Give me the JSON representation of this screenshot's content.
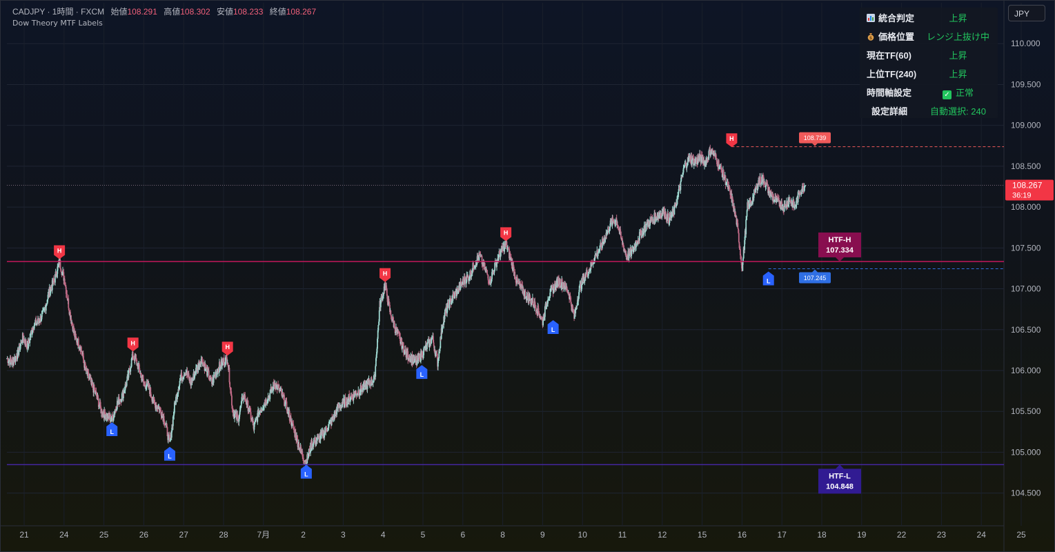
{
  "header": {
    "symbol": "CADJPY · 1時間 · FXCM",
    "open_label": "始値",
    "open": "108.291",
    "high_label": "高値",
    "high": "108.302",
    "low_label": "安値",
    "low": "108.233",
    "close_label": "終値",
    "close": "108.267",
    "indicator_name": "Dow Theory MTF Labels"
  },
  "currency_button": "JPY",
  "info_panel": [
    {
      "label": "統合判定",
      "value": "上昇",
      "icon": "chart-icon"
    },
    {
      "label": "価格位置",
      "value": "レンジ上抜け中",
      "icon": "money-bag-icon"
    },
    {
      "label": "現在TF(60)",
      "value": "上昇"
    },
    {
      "label": "上位TF(240)",
      "value": "上昇"
    },
    {
      "label": "時間軸設定",
      "value": "正常",
      "icon": "check-icon"
    },
    {
      "label": "設定詳細",
      "value": "自動選択: 240"
    }
  ],
  "colors": {
    "up": "#26a69a",
    "down": "#ef5350",
    "high_marker": "#f23645",
    "low_marker": "#2962ff",
    "htf_high": "#880e4f",
    "htf_low": "#311b92",
    "positive_text": "#22c55e",
    "price_tag": "#f23645"
  },
  "chart_data": {
    "type": "candlestick",
    "yaxis": {
      "min": 104.1,
      "max": 110.5,
      "ticks": [
        "104.500",
        "105.000",
        "105.500",
        "106.000",
        "106.500",
        "107.000",
        "107.500",
        "108.000",
        "108.500",
        "109.000",
        "109.500",
        "110.000"
      ]
    },
    "xaxis": {
      "ticks": [
        "21",
        "24",
        "25",
        "26",
        "27",
        "28",
        "7月",
        "2",
        "3",
        "4",
        "5",
        "6",
        "8",
        "9",
        "10",
        "11",
        "12",
        "15",
        "16",
        "17",
        "18",
        "19",
        "22",
        "23",
        "24",
        "25"
      ]
    },
    "last_price": "108.267",
    "countdown": "36:19",
    "path": [
      106.15,
      106.1,
      106.2,
      106.4,
      106.3,
      106.55,
      106.6,
      106.7,
      106.95,
      107.1,
      107.33,
      107.1,
      106.7,
      106.4,
      106.3,
      106.0,
      105.85,
      105.7,
      105.5,
      105.45,
      105.4,
      105.6,
      105.7,
      105.9,
      106.2,
      106.05,
      105.85,
      105.8,
      105.6,
      105.55,
      105.4,
      105.1,
      105.6,
      105.9,
      106.0,
      105.85,
      106.0,
      106.15,
      106.0,
      105.85,
      106.0,
      106.1,
      106.15,
      105.5,
      105.4,
      105.7,
      105.55,
      105.3,
      105.5,
      105.6,
      105.7,
      105.85,
      105.75,
      105.6,
      105.4,
      105.2,
      105.0,
      104.88,
      105.1,
      105.15,
      105.2,
      105.3,
      105.4,
      105.55,
      105.6,
      105.65,
      105.7,
      105.75,
      105.8,
      105.85,
      105.9,
      106.8,
      107.05,
      106.7,
      106.5,
      106.35,
      106.2,
      106.15,
      106.1,
      106.2,
      106.3,
      106.4,
      106.1,
      106.6,
      106.8,
      106.9,
      107.0,
      107.1,
      107.15,
      107.3,
      107.4,
      107.25,
      107.1,
      107.3,
      107.45,
      107.55,
      107.35,
      107.1,
      107.0,
      106.9,
      106.85,
      106.75,
      106.6,
      106.9,
      107.0,
      107.1,
      107.05,
      106.95,
      106.65,
      107.0,
      107.15,
      107.25,
      107.4,
      107.5,
      107.65,
      107.8,
      107.85,
      107.6,
      107.4,
      107.45,
      107.6,
      107.7,
      107.8,
      107.85,
      107.9,
      107.95,
      107.85,
      107.95,
      108.2,
      108.5,
      108.6,
      108.55,
      108.6,
      108.55,
      108.7,
      108.6,
      108.45,
      108.3,
      108.1,
      107.8,
      107.25,
      108.0,
      108.1,
      108.3,
      108.35,
      108.2,
      108.1,
      108.05,
      108.0,
      108.1,
      108.0,
      108.2,
      108.267
    ],
    "swings": [
      {
        "type": "H",
        "price": 107.33
      },
      {
        "type": "L",
        "price": 105.4
      },
      {
        "type": "H",
        "price": 106.2
      },
      {
        "type": "L",
        "price": 105.1
      },
      {
        "type": "H",
        "price": 106.15
      },
      {
        "type": "L",
        "price": 104.88
      },
      {
        "type": "H",
        "price": 107.05
      },
      {
        "type": "L",
        "price": 106.1
      },
      {
        "type": "H",
        "price": 107.55
      },
      {
        "type": "L",
        "price": 106.65
      },
      {
        "type": "H",
        "price": 108.7
      },
      {
        "type": "L",
        "price": 107.245
      }
    ],
    "levels": {
      "htf_high": {
        "label": "HTF-H",
        "value": "107.334",
        "price": 107.334
      },
      "htf_low": {
        "label": "HTF-L",
        "value": "104.848",
        "price": 104.848
      },
      "recent_high": {
        "value": "108.739",
        "price": 108.739
      },
      "recent_low": {
        "value": "107.245",
        "price": 107.245
      }
    }
  }
}
